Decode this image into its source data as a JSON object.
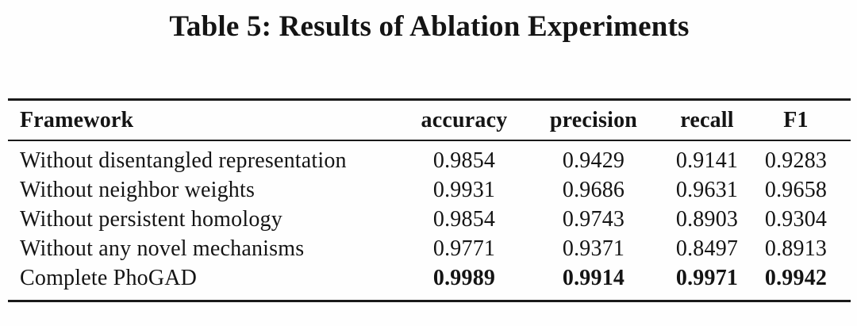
{
  "caption": "Table 5: Results of Ablation Experiments",
  "table": {
    "columns": [
      "Framework",
      "accuracy",
      "precision",
      "recall",
      "F1"
    ],
    "rows": [
      [
        "Without disentangled representation",
        "0.9854",
        "0.9429",
        "0.9141",
        "0.9283"
      ],
      [
        "Without neighbor weights",
        "0.9931",
        "0.9686",
        "0.9631",
        "0.9658"
      ],
      [
        "Without persistent homology",
        "0.9854",
        "0.9743",
        "0.8903",
        "0.9304"
      ],
      [
        "Without any novel mechanisms",
        "0.9771",
        "0.9371",
        "0.8497",
        "0.8913"
      ],
      [
        "Complete PhoGAD",
        "0.9989",
        "0.9914",
        "0.9971",
        "0.9942"
      ]
    ],
    "emphasized_row": "Complete PhoGAD"
  },
  "colors": {
    "text": "#141414",
    "rule": "#1a1a1a",
    "background": "#fefefe"
  }
}
